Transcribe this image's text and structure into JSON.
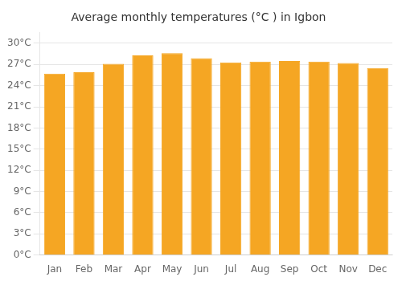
{
  "chart_data": {
    "type": "bar",
    "title": "Average monthly temperatures (°C ) in Igbon",
    "categories": [
      "Jan",
      "Feb",
      "Mar",
      "Apr",
      "May",
      "Jun",
      "Jul",
      "Aug",
      "Sep",
      "Oct",
      "Nov",
      "Dec"
    ],
    "values": [
      25.7,
      25.9,
      27.1,
      28.3,
      28.6,
      27.9,
      27.3,
      27.4,
      27.5,
      27.4,
      27.2,
      26.5
    ],
    "color": "#F5A623",
    "ylim": [
      0,
      31.5
    ],
    "yticks": [
      {
        "value": 0,
        "label": "0°C"
      },
      {
        "value": 3,
        "label": "3°C"
      },
      {
        "value": 6,
        "label": "6°C"
      },
      {
        "value": 9,
        "label": "9°C"
      },
      {
        "value": 12,
        "label": "12°C"
      },
      {
        "value": 15,
        "label": "15°C"
      },
      {
        "value": 18,
        "label": "18°C"
      },
      {
        "value": 21,
        "label": "21°C"
      },
      {
        "value": 24,
        "label": "24°C"
      },
      {
        "value": 27,
        "label": "27°C"
      },
      {
        "value": 30,
        "label": "30°C"
      }
    ],
    "grid": true
  }
}
